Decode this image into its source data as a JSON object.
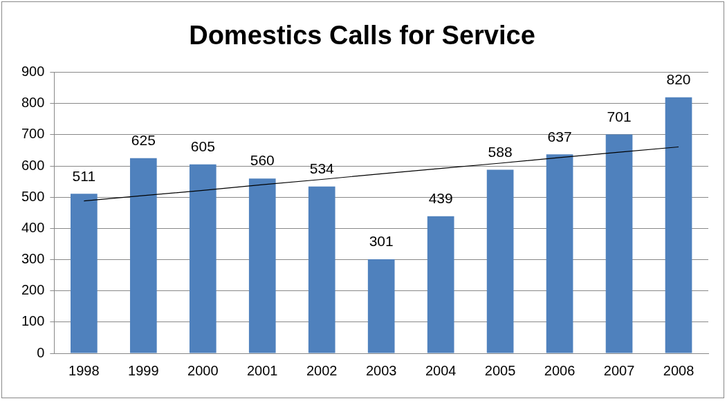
{
  "chart_data": {
    "type": "bar",
    "title": "Domestics Calls for Service",
    "categories": [
      "1998",
      "1999",
      "2000",
      "2001",
      "2002",
      "2003",
      "2004",
      "2005",
      "2006",
      "2007",
      "2008"
    ],
    "series": [
      {
        "color": "#4f81bd",
        "values": [
          511,
          625,
          605,
          560,
          534,
          301,
          439,
          588,
          637,
          701,
          820
        ],
        "value_labels": [
          "511",
          "625",
          "605",
          "560",
          "534",
          "301",
          "439",
          "588",
          "637",
          "701",
          "820"
        ]
      },
      {
        "type": "line",
        "color": "#000000",
        "values": [
          488,
          505,
          522,
          540,
          557,
          575,
          592,
          609,
          627,
          644,
          661
        ]
      }
    ],
    "ylim": [
      0,
      900
    ],
    "yticks": [
      0,
      100,
      200,
      300,
      400,
      500,
      600,
      700,
      800,
      900
    ],
    "grid": "y",
    "legend": false
  }
}
